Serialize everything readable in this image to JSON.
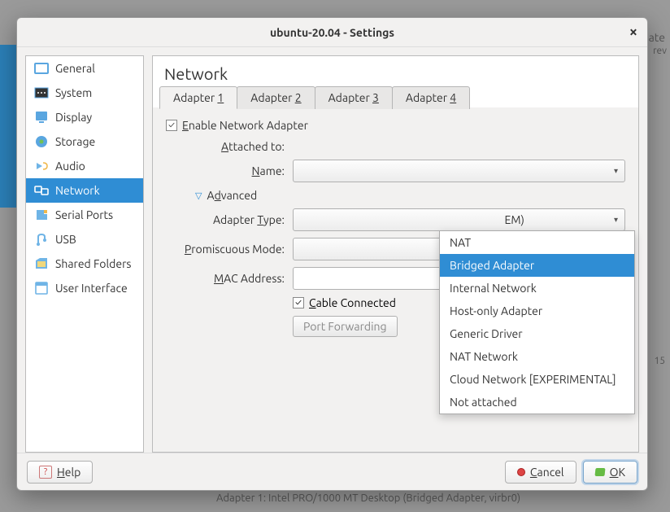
{
  "window": {
    "title": "ubuntu-20.04 - Settings"
  },
  "background": {
    "ate": "ate",
    "rev": "rev",
    "fifteen": "15",
    "adapter_line": "Adapter 1:   Intel PRO/1000 MT Desktop (Bridged Adapter, virbr0)"
  },
  "sidebar": {
    "items": [
      {
        "label": "General",
        "icon_color1": "#5aa6e0",
        "icon_color2": "#fff"
      },
      {
        "label": "System",
        "icon_color1": "#5aa6e0",
        "icon_color2": "#333"
      },
      {
        "label": "Display",
        "icon_color1": "#5aa6e0",
        "icon_color2": "#333"
      },
      {
        "label": "Storage",
        "icon_color1": "#5aa6e0",
        "icon_color2": "#71c255"
      },
      {
        "label": "Audio",
        "icon_color1": "#6fb4e6",
        "icon_color2": "#f0b84c"
      },
      {
        "label": "Network",
        "icon_color1": "#fff",
        "icon_color2": "#cfe8f8"
      },
      {
        "label": "Serial Ports",
        "icon_color1": "#6fb4e6",
        "icon_color2": "#f0b84c"
      },
      {
        "label": "USB",
        "icon_color1": "#6fb4e6",
        "icon_color2": "#333"
      },
      {
        "label": "Shared Folders",
        "icon_color1": "#6fb4e6",
        "icon_color2": "#f0d87c"
      },
      {
        "label": "User Interface",
        "icon_color1": "#6fb4e6",
        "icon_color2": "#fff"
      }
    ],
    "selected_index": 5
  },
  "page": {
    "title": "Network"
  },
  "tabs": {
    "items": [
      {
        "prefix": "Adapter ",
        "key": "1"
      },
      {
        "prefix": "Adapter ",
        "key": "2"
      },
      {
        "prefix": "Adapter ",
        "key": "3"
      },
      {
        "prefix": "Adapter ",
        "key": "4"
      }
    ],
    "active_index": 0
  },
  "form": {
    "enable_label_pre": "E",
    "enable_label_post": "nable Network Adapter",
    "enable_checked": true,
    "attached_to": {
      "ul": "A",
      "rest": "ttached to:"
    },
    "name": {
      "ul": "N",
      "rest": "ame:"
    },
    "advanced": {
      "ul": "d",
      "pre": "A",
      "rest": "vanced"
    },
    "adapter_type": {
      "pre": "Adapter ",
      "ul": "T",
      "rest": "ype:",
      "value_suffix": "EM)"
    },
    "promiscuous": {
      "ul": "P",
      "rest": "romiscuous Mode:"
    },
    "mac": {
      "ul": "M",
      "rest": "AC Address:"
    },
    "cable": {
      "ul": "C",
      "rest": "able Connected",
      "checked": true
    },
    "port_forwarding": "Port Forwarding"
  },
  "dropdown": {
    "open": true,
    "selected_index": 1,
    "items": [
      "NAT",
      "Bridged Adapter",
      "Internal Network",
      "Host-only Adapter",
      "Generic Driver",
      "NAT Network",
      "Cloud Network [EXPERIMENTAL]",
      "Not attached"
    ]
  },
  "footer": {
    "help": {
      "ul": "H",
      "rest": "elp"
    },
    "cancel": {
      "ul": "C",
      "rest": "ancel"
    },
    "ok": {
      "ul": "O",
      "rest": "K"
    }
  },
  "colors": {
    "accent": "#2f8dd4",
    "dialog_bg": "#f2f1f0",
    "border": "#b0b0b0"
  }
}
